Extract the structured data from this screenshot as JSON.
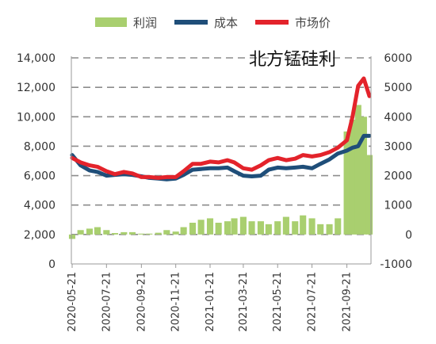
{
  "chart_data": {
    "type": "bar+line",
    "title": "北方锰硅利",
    "legend": {
      "placement": "top",
      "entries": [
        {
          "name": "利润",
          "kind": "bar",
          "color": "#a9cf6f"
        },
        {
          "name": "成本",
          "kind": "line",
          "color": "#1f4e79"
        },
        {
          "name": "市场价",
          "kind": "line",
          "color": "#e3232b"
        }
      ]
    },
    "left_axis": {
      "min": 0,
      "max": 14000,
      "ticks": [
        "0",
        "2,000",
        "4,000",
        "6,000",
        "8,000",
        "10,000",
        "12,000",
        "14,000"
      ]
    },
    "right_axis": {
      "min": -1000,
      "max": 6000,
      "ticks": [
        "-1000",
        "0",
        "1000",
        "2000",
        "3000",
        "4000",
        "5000",
        "6000"
      ]
    },
    "x_axis": {
      "ticks": [
        "2020-05-21",
        "2020-07-21",
        "2020-09-21",
        "2020-11-21",
        "2021-01-21",
        "2021-03-21",
        "2021-05-21",
        "2021-07-21",
        "2021-09-21"
      ]
    },
    "grid": "horizontal dashed",
    "x": [
      "2020-05-21",
      "2020-06-05",
      "2020-06-21",
      "2020-07-05",
      "2020-07-21",
      "2020-08-05",
      "2020-08-21",
      "2020-09-05",
      "2020-09-21",
      "2020-10-05",
      "2020-10-21",
      "2020-11-05",
      "2020-11-21",
      "2020-12-05",
      "2020-12-21",
      "2021-01-05",
      "2021-01-21",
      "2021-02-05",
      "2021-02-21",
      "2021-03-05",
      "2021-03-21",
      "2021-04-05",
      "2021-04-21",
      "2021-05-05",
      "2021-05-21",
      "2021-06-05",
      "2021-06-21",
      "2021-07-05",
      "2021-07-21",
      "2021-08-05",
      "2021-08-21",
      "2021-09-05",
      "2021-09-21",
      "2021-10-01",
      "2021-10-11",
      "2021-10-21",
      "2021-10-31"
    ],
    "series": [
      {
        "name": "成本",
        "axis": "left",
        "values": [
          7400,
          6700,
          6350,
          6250,
          6000,
          6050,
          6100,
          6050,
          5950,
          5850,
          5800,
          5750,
          5800,
          6050,
          6400,
          6450,
          6500,
          6500,
          6550,
          6300,
          6000,
          5950,
          6000,
          6400,
          6550,
          6500,
          6550,
          6600,
          6500,
          6800,
          7100,
          7500,
          7700,
          7900,
          8000,
          8700,
          8700
        ]
      },
      {
        "name": "市场价",
        "axis": "left",
        "values": [
          7200,
          6900,
          6700,
          6600,
          6300,
          6100,
          6250,
          6150,
          5900,
          5900,
          5850,
          5900,
          5900,
          6300,
          6800,
          6800,
          6950,
          6900,
          7050,
          6900,
          6500,
          6400,
          6700,
          7050,
          7200,
          7050,
          7150,
          7400,
          7300,
          7400,
          7600,
          7900,
          8400,
          10000,
          12100,
          12600,
          11400
        ]
      },
      {
        "name": "利润",
        "axis": "right",
        "values": [
          -150,
          150,
          200,
          250,
          150,
          50,
          80,
          80,
          30,
          30,
          60,
          150,
          100,
          250,
          400,
          500,
          550,
          400,
          450,
          550,
          600,
          450,
          450,
          350,
          450,
          600,
          450,
          650,
          550,
          350,
          350,
          550,
          3500,
          3900,
          4400,
          4000,
          2700
        ]
      }
    ]
  }
}
